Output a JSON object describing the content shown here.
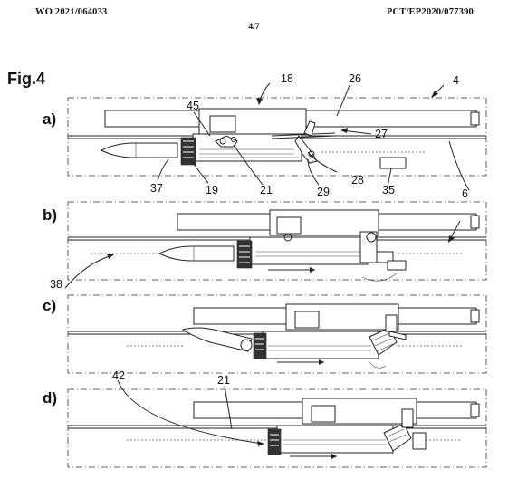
{
  "header": {
    "publication_number": "WO 2021/064033",
    "sheet": "4/7",
    "application_number": "PCT/EP2020/077390"
  },
  "figure": {
    "title": "Fig.4",
    "panels": [
      {
        "label": "a)"
      },
      {
        "label": "b)"
      },
      {
        "label": "c)"
      },
      {
        "label": "d)"
      }
    ],
    "reference_numerals": {
      "n4": "4",
      "n6": "6",
      "n18": "18",
      "n19": "19",
      "n21": "21",
      "n21b": "21",
      "n26": "26",
      "n27": "27",
      "n28": "28",
      "n29": "29",
      "n35": "35",
      "n37": "37",
      "n38": "38",
      "n42": "42",
      "n45": "45"
    }
  }
}
